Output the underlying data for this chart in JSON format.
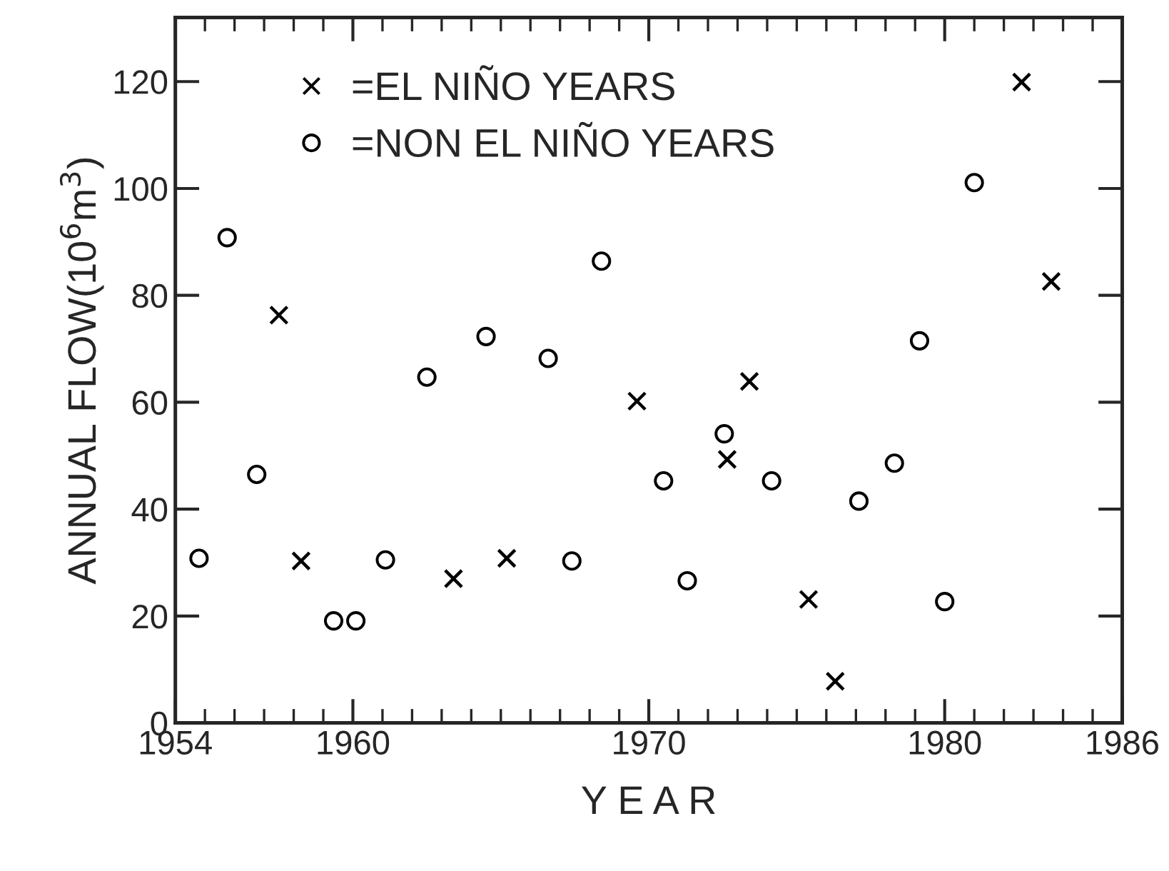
{
  "chart_data": {
    "type": "scatter",
    "xlabel": "Y E A R",
    "ylabel": "ANNUAL FLOW(10$^{6}$m$^{3}$)",
    "xlim": [
      1954,
      1986
    ],
    "xticks": [
      1954,
      1960,
      1970,
      1980,
      1986
    ],
    "ylim": [
      0,
      132
    ],
    "yticks": [
      0,
      20,
      40,
      60,
      80,
      100,
      120
    ],
    "grid": false,
    "legend": "top left",
    "series": [
      {
        "name": "=EL NIÑO YEARS",
        "color": "#000000",
        "marker": "cross",
        "x": [
          1957.5,
          1958.25,
          1963.4,
          1965.2,
          1969.6,
          1972.65,
          1973.4,
          1975.4,
          1976.3,
          1982.6,
          1983.6
        ],
        "values": [
          76.3,
          30.3,
          27.0,
          30.8,
          60.2,
          49.3,
          63.9,
          23.1,
          7.8,
          119.9,
          82.6
        ]
      },
      {
        "name": "=NON EL NIÑO YEARS",
        "color": "#000000",
        "marker": "circle",
        "x": [
          1954.8,
          1955.75,
          1956.75,
          1959.35,
          1960.1,
          1961.1,
          1962.5,
          1964.5,
          1966.6,
          1967.4,
          1968.4,
          1970.5,
          1971.3,
          1972.55,
          1974.15,
          1977.1,
          1978.3,
          1979.15,
          1980.0,
          1981.0
        ],
        "values": [
          30.8,
          90.8,
          46.5,
          19.1,
          19.1,
          30.5,
          64.7,
          72.3,
          68.2,
          30.3,
          86.4,
          45.3,
          26.6,
          54.1,
          45.3,
          41.5,
          48.6,
          71.5,
          22.7,
          101.1
        ]
      }
    ]
  }
}
